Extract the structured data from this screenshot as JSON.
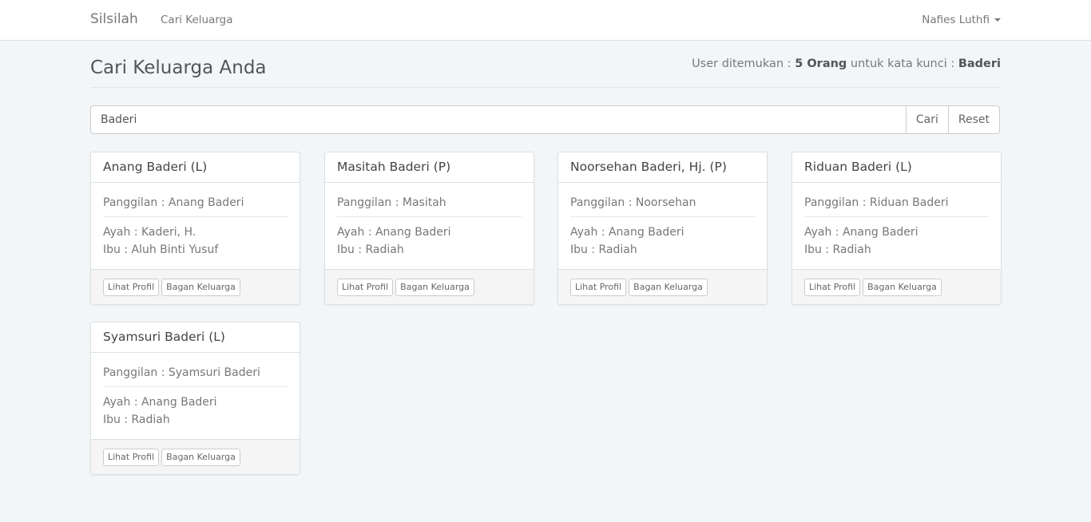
{
  "navbar": {
    "brand": "Silsilah",
    "link": "Cari Keluarga",
    "user": "Nafies Luthfi"
  },
  "page": {
    "title": "Cari Keluarga Anda",
    "summary_prefix": "User ditemukan : ",
    "summary_count": "5 Orang",
    "summary_mid": " untuk kata kunci : ",
    "summary_keyword": "Baderi"
  },
  "search": {
    "value": "Baderi",
    "search_label": "Cari",
    "reset_label": "Reset"
  },
  "cards": [
    {
      "name": "Anang Baderi (L)",
      "nickname": "Panggilan : Anang Baderi",
      "father": "Ayah : Kaderi, H.",
      "mother": "Ibu : Aluh Binti Yusuf",
      "profile_label": "Lihat Profil",
      "tree_label": "Bagan Keluarga"
    },
    {
      "name": "Masitah Baderi (P)",
      "nickname": "Panggilan : Masitah",
      "father": "Ayah : Anang Baderi",
      "mother": "Ibu : Radiah",
      "profile_label": "Lihat Profil",
      "tree_label": "Bagan Keluarga"
    },
    {
      "name": "Noorsehan Baderi, Hj. (P)",
      "nickname": "Panggilan : Noorsehan",
      "father": "Ayah : Anang Baderi",
      "mother": "Ibu : Radiah",
      "profile_label": "Lihat Profil",
      "tree_label": "Bagan Keluarga"
    },
    {
      "name": "Riduan Baderi (L)",
      "nickname": "Panggilan : Riduan Baderi",
      "father": "Ayah : Anang Baderi",
      "mother": "Ibu : Radiah",
      "profile_label": "Lihat Profil",
      "tree_label": "Bagan Keluarga"
    },
    {
      "name": "Syamsuri Baderi (L)",
      "nickname": "Panggilan : Syamsuri Baderi",
      "father": "Ayah : Anang Baderi",
      "mother": "Ibu : Radiah",
      "profile_label": "Lihat Profil",
      "tree_label": "Bagan Keluarga"
    }
  ]
}
